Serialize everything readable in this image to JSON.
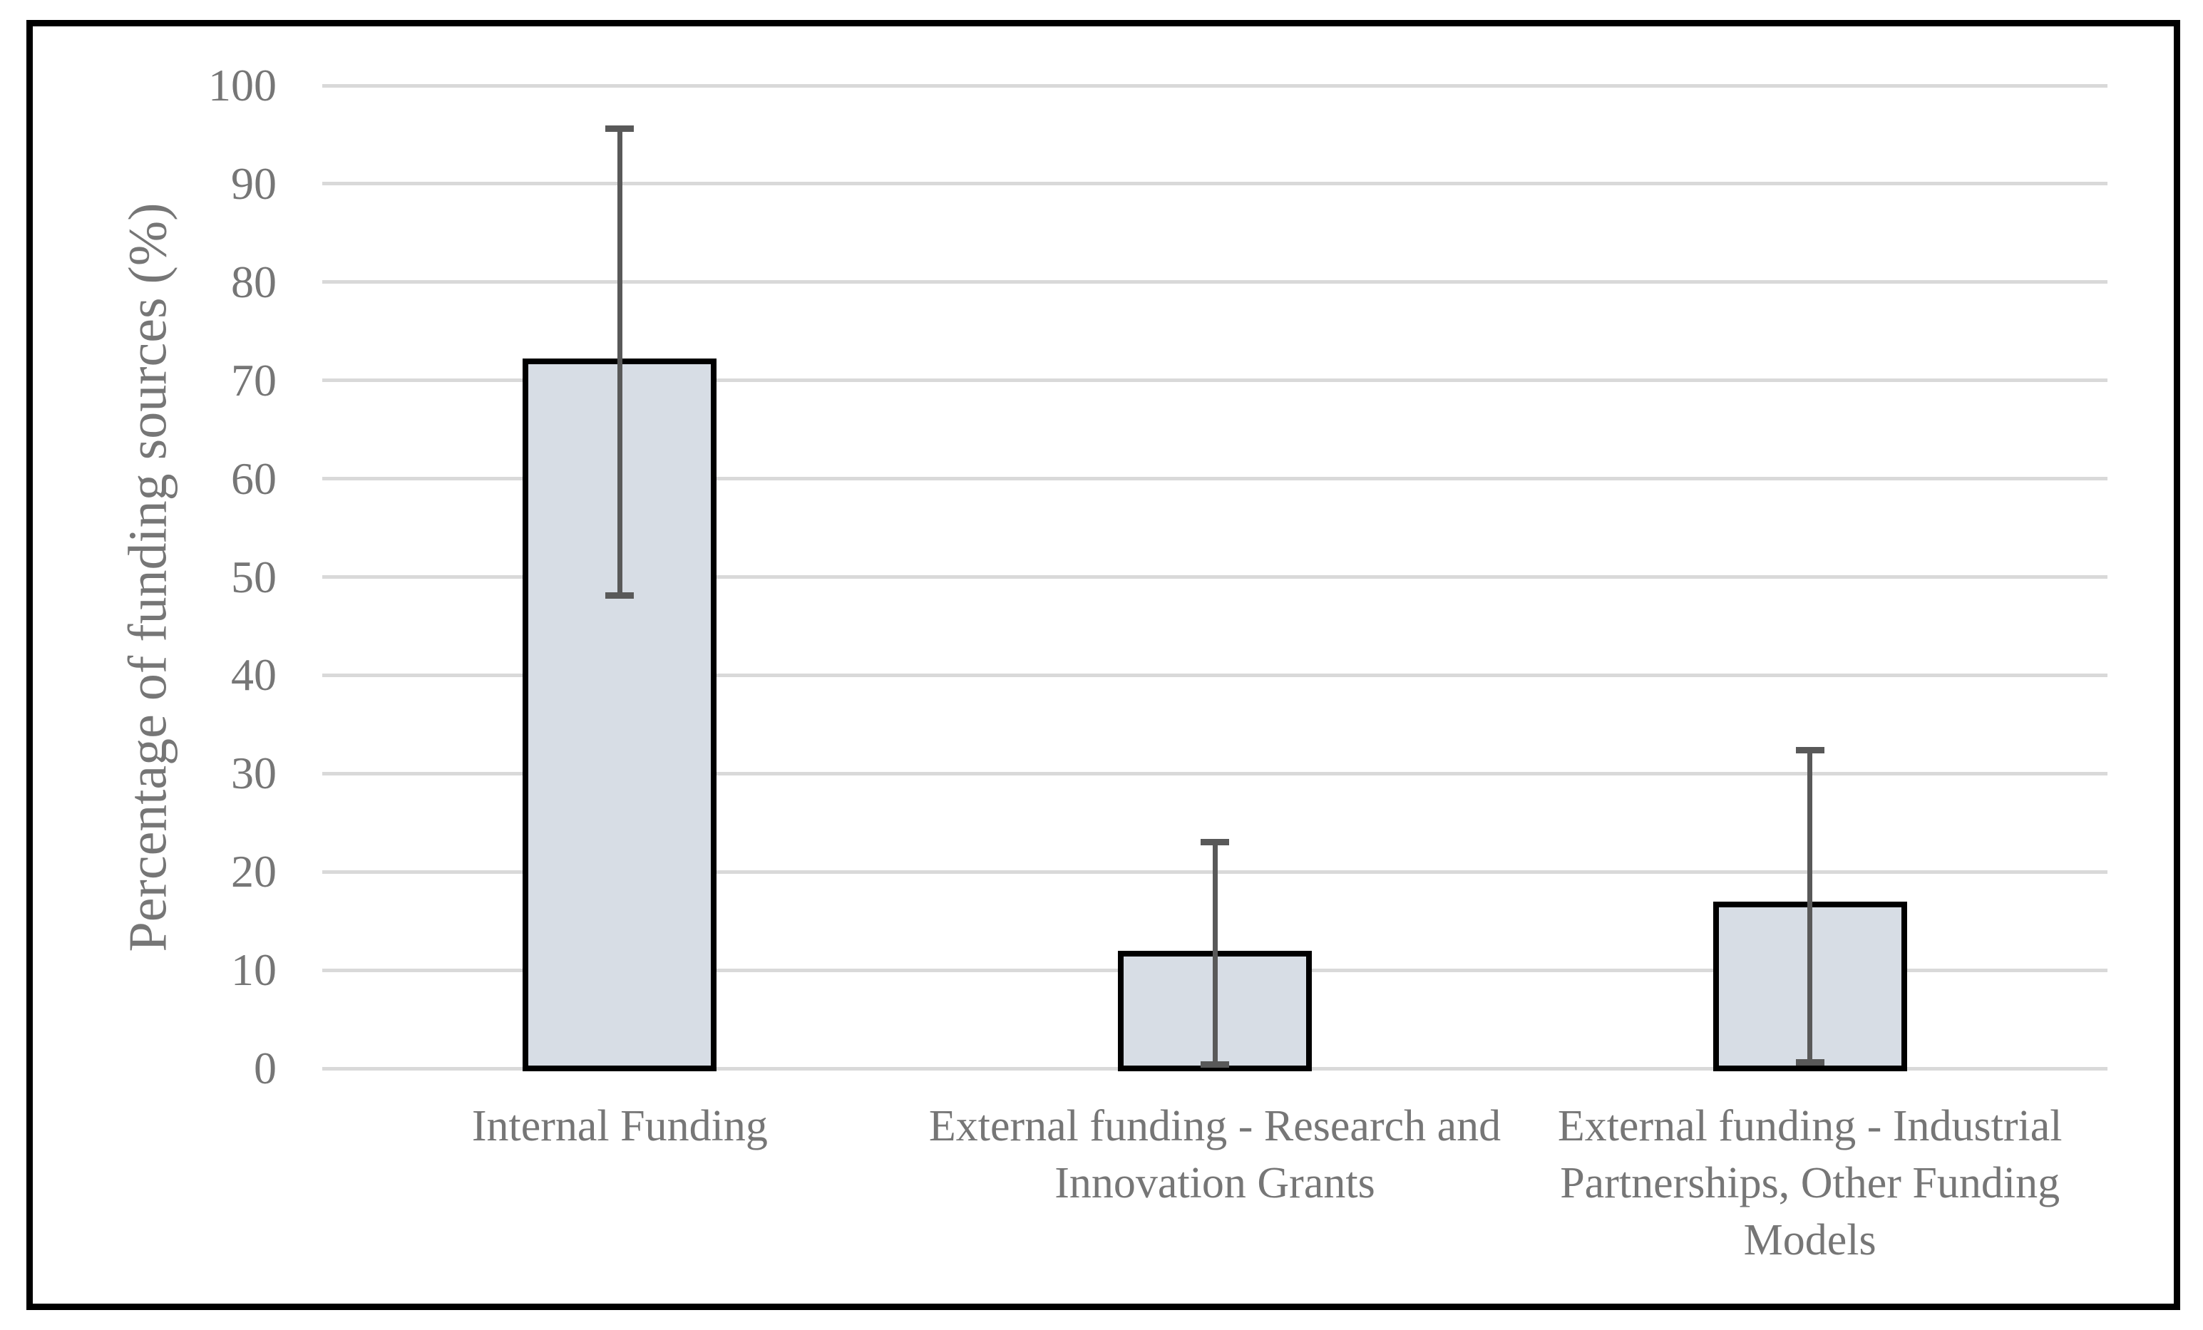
{
  "figure": {
    "background": "#FFFFFF",
    "frame_border_color": "#000000"
  },
  "colors": {
    "bar_fill": "#D7DDE5",
    "bar_border": "#000000",
    "error_bar": "#595959",
    "gridline": "#D9D9D9",
    "axis_text": "#767676"
  },
  "chart_data": {
    "type": "bar",
    "title": "",
    "xlabel": "",
    "ylabel": "Percentage of funding sources (%)",
    "ylim": [
      0,
      100
    ],
    "yticks": [
      0,
      10,
      20,
      30,
      40,
      50,
      60,
      70,
      80,
      90,
      100
    ],
    "grid": true,
    "legend": false,
    "categories": [
      "Internal Funding",
      "External funding - Research and Innovation Grants",
      "External funding - Industrial Partnerships, Other Funding Models"
    ],
    "categories_lines": [
      [
        "Internal Funding"
      ],
      [
        "External funding - Research and",
        "Innovation Grants"
      ],
      [
        "External funding - Industrial",
        "Partnerships, Other Funding",
        "Models"
      ]
    ],
    "values": [
      71.9,
      11.7,
      16.7
    ],
    "error_bars": {
      "upper_end": [
        95.6,
        23.0,
        32.4
      ],
      "lower_end": [
        48.1,
        0.4,
        0.6
      ]
    }
  }
}
